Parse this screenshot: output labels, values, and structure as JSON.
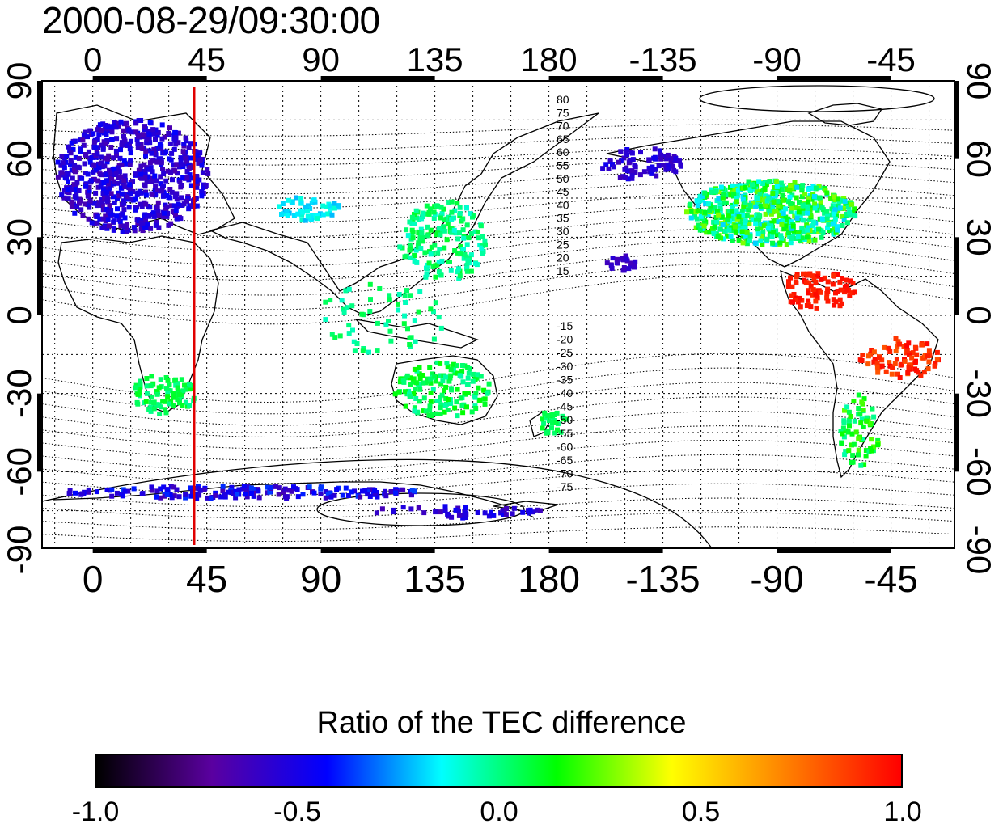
{
  "title": "2000-08-29/09:30:00",
  "map": {
    "top_lon_labels": [
      "0",
      "45",
      "90",
      "135",
      "180",
      "-135",
      "-90",
      "-45"
    ],
    "bottom_lon_labels": [
      "0",
      "45",
      "90",
      "135",
      "180",
      "-135",
      "-90",
      "-45"
    ],
    "left_lat_labels": [
      "90",
      "60",
      "30",
      "0",
      "-30",
      "-60",
      "-90"
    ],
    "right_lat_labels": [
      "90",
      "60",
      "30",
      "0",
      "-30",
      "-60",
      "-90"
    ],
    "north_contour_labels": [
      "80",
      "75",
      "70",
      "65",
      "60",
      "55",
      "50",
      "45",
      "40",
      "35",
      "30",
      "25",
      "20",
      "15"
    ],
    "south_contour_labels": [
      "-15",
      "-20",
      "-25",
      "-30",
      "-35",
      "-40",
      "-45",
      "-50",
      "-55",
      "-60",
      "-65",
      "-70",
      "-75"
    ],
    "marker_longitude": 40,
    "marker_color": "#e00000"
  },
  "colorbar": {
    "title": "Ratio of the TEC difference",
    "tick_labels": [
      "-1.0",
      "-0.5",
      "0.0",
      "0.5",
      "1.0"
    ],
    "colors": [
      "#000000",
      "#5a00a0",
      "#0000ff",
      "#00ffff",
      "#00ff00",
      "#ffff00",
      "#ff8000",
      "#ff0000"
    ]
  }
}
